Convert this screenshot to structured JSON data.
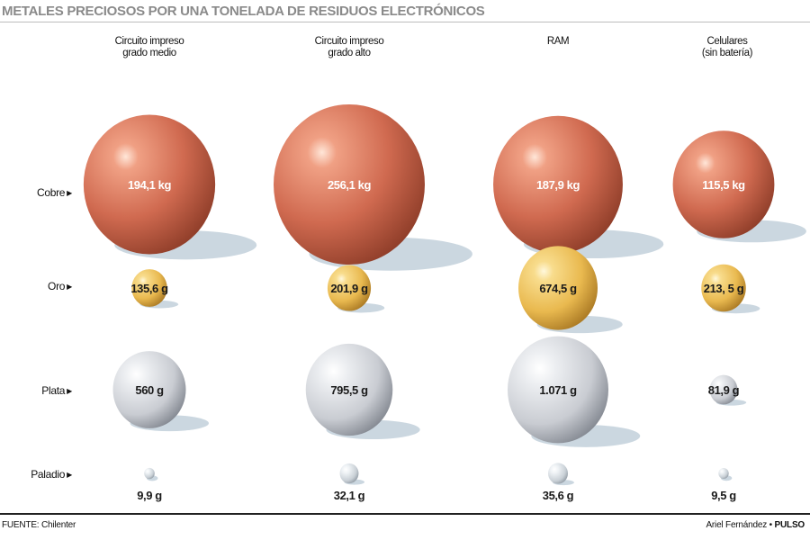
{
  "title": "METALES PRECIOSOS POR UNA TONELADA DE RESIDUOS ELECTRÓNICOS",
  "source": "FUENTE: Chilenter",
  "credit": {
    "author": "Ariel Fernández",
    "separator": "•",
    "brand": "PULSO"
  },
  "colors": {
    "Cobre": "#d06a50",
    "Oro": "#e9b94f",
    "Plata": "#c9ccd2",
    "Paladio": "#c9d0d6",
    "shadow": "#b9c9d6"
  },
  "chart_data": {
    "type": "bubble",
    "columns": [
      {
        "key": "c1",
        "lines": [
          "Circuito impreso",
          "grado medio"
        ]
      },
      {
        "key": "c2",
        "lines": [
          "Circuito impreso",
          "grado alto"
        ]
      },
      {
        "key": "c3",
        "lines": [
          "RAM"
        ]
      },
      {
        "key": "c4",
        "lines": [
          "Celulares",
          "(sin batería)"
        ]
      }
    ],
    "rows": [
      {
        "key": "cobre",
        "label": "Cobre"
      },
      {
        "key": "oro",
        "label": "Oro"
      },
      {
        "key": "plata",
        "label": "Plata"
      },
      {
        "key": "paladio",
        "label": "Paladio"
      }
    ],
    "series": [
      {
        "name": "Cobre",
        "unit": "kg",
        "values": [
          194.1,
          256.1,
          187.9,
          115.5
        ],
        "labels": [
          "194,1 kg",
          "256,1 kg",
          "187,9 kg",
          "115,5 kg"
        ]
      },
      {
        "name": "Oro",
        "unit": "g",
        "values": [
          135.6,
          201.9,
          674.5,
          213.5
        ],
        "labels": [
          "135,6 g",
          "201,9 g",
          "674,5 g",
          "213, 5 g"
        ]
      },
      {
        "name": "Plata",
        "unit": "g",
        "values": [
          560,
          795.5,
          1071,
          81.9
        ],
        "labels": [
          "560 g",
          "795,5 g",
          "1.071 g",
          "81,9 g"
        ]
      },
      {
        "name": "Paladio",
        "unit": "g",
        "values": [
          9.9,
          32.1,
          35.6,
          9.5
        ],
        "labels": [
          "9,9 g",
          "32,1 g",
          "35,6 g",
          "9,5 g"
        ]
      }
    ]
  }
}
